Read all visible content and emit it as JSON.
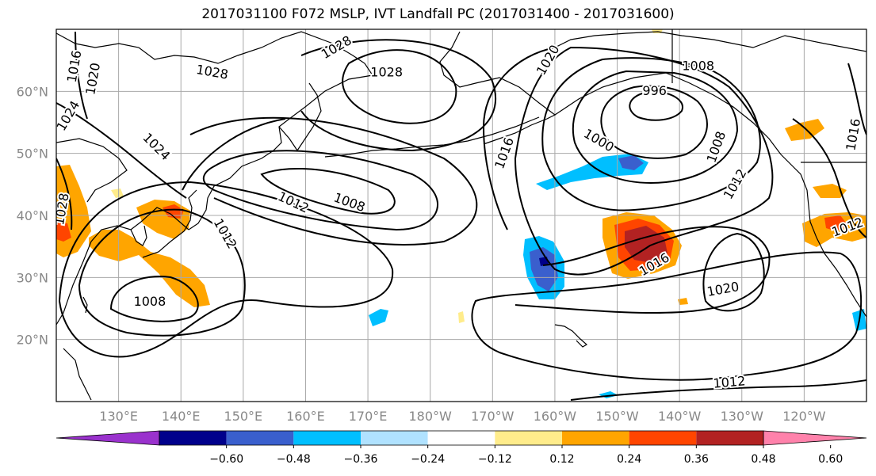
{
  "title": "2017031100 F072 MSLP, IVT Landfall PC (2017031400 - 2017031600)",
  "map": {
    "lon_range": [
      120,
      250
    ],
    "lat_range": [
      10,
      70
    ],
    "lat_ticks": [
      {
        "value": 20,
        "label": "20°N"
      },
      {
        "value": 30,
        "label": "30°N"
      },
      {
        "value": 40,
        "label": "40°N"
      },
      {
        "value": 50,
        "label": "50°N"
      },
      {
        "value": 60,
        "label": "60°N"
      }
    ],
    "lon_ticks": [
      {
        "value": 130,
        "label": "130°E"
      },
      {
        "value": 140,
        "label": "140°E"
      },
      {
        "value": 150,
        "label": "150°E"
      },
      {
        "value": 160,
        "label": "160°E"
      },
      {
        "value": 170,
        "label": "170°E"
      },
      {
        "value": 180,
        "label": "180°W"
      },
      {
        "value": 190,
        "label": "170°W"
      },
      {
        "value": 200,
        "label": "160°W"
      },
      {
        "value": 210,
        "label": "150°W"
      },
      {
        "value": 220,
        "label": "140°W"
      },
      {
        "value": 230,
        "label": "130°W"
      },
      {
        "value": 240,
        "label": "120°W"
      }
    ],
    "contour_labels": [
      {
        "text": "1016",
        "lon": 123,
        "lat": 64,
        "rot": -80
      },
      {
        "text": "1020",
        "lon": 126,
        "lat": 62,
        "rot": -80
      },
      {
        "text": "1024",
        "lon": 122,
        "lat": 56,
        "rot": -60
      },
      {
        "text": "1028",
        "lon": 145,
        "lat": 63,
        "rot": 10
      },
      {
        "text": "1028",
        "lon": 165,
        "lat": 67,
        "rot": -30
      },
      {
        "text": "1028",
        "lon": 173,
        "lat": 63,
        "rot": 0
      },
      {
        "text": "1020",
        "lon": 199,
        "lat": 65,
        "rot": -60
      },
      {
        "text": "1008",
        "lon": 223,
        "lat": 64,
        "rot": 0
      },
      {
        "text": "996",
        "lon": 216,
        "lat": 60,
        "rot": 0
      },
      {
        "text": "1000",
        "lon": 207,
        "lat": 52,
        "rot": 30
      },
      {
        "text": "1016",
        "lon": 192,
        "lat": 50,
        "rot": -70
      },
      {
        "text": "1024",
        "lon": 136,
        "lat": 51,
        "rot": 45
      },
      {
        "text": "1012",
        "lon": 158,
        "lat": 42,
        "rot": 25
      },
      {
        "text": "1008",
        "lon": 167,
        "lat": 42,
        "rot": 20
      },
      {
        "text": "1028",
        "lon": 121,
        "lat": 41,
        "rot": -80
      },
      {
        "text": "1012",
        "lon": 147,
        "lat": 37,
        "rot": 60
      },
      {
        "text": "1008",
        "lon": 135,
        "lat": 26,
        "rot": 0
      },
      {
        "text": "1016",
        "lon": 216,
        "lat": 32,
        "rot": -30
      },
      {
        "text": "1020",
        "lon": 227,
        "lat": 28,
        "rot": -10
      },
      {
        "text": "1012",
        "lon": 228,
        "lat": 13,
        "rot": -5
      },
      {
        "text": "1012",
        "lon": 229,
        "lat": 45,
        "rot": -60
      },
      {
        "text": "1008",
        "lon": 226,
        "lat": 51,
        "rot": -70
      },
      {
        "text": "1012",
        "lon": 247,
        "lat": 38,
        "rot": -20
      },
      {
        "text": "1016",
        "lon": 248,
        "lat": 53,
        "rot": -80
      }
    ]
  },
  "colorbar": {
    "colors": [
      "#9a32cd",
      "#00008b",
      "#3a5fcd",
      "#00bfff",
      "#b0e2ff",
      "#ffffff",
      "#ffec8b",
      "#ffa500",
      "#ff4500",
      "#b22222",
      "#ff82ab"
    ],
    "labels": [
      "−0.60",
      "−0.48",
      "−0.36",
      "−0.24",
      "−0.12",
      "0.12",
      "0.24",
      "0.36",
      "0.48",
      "0.60"
    ]
  }
}
